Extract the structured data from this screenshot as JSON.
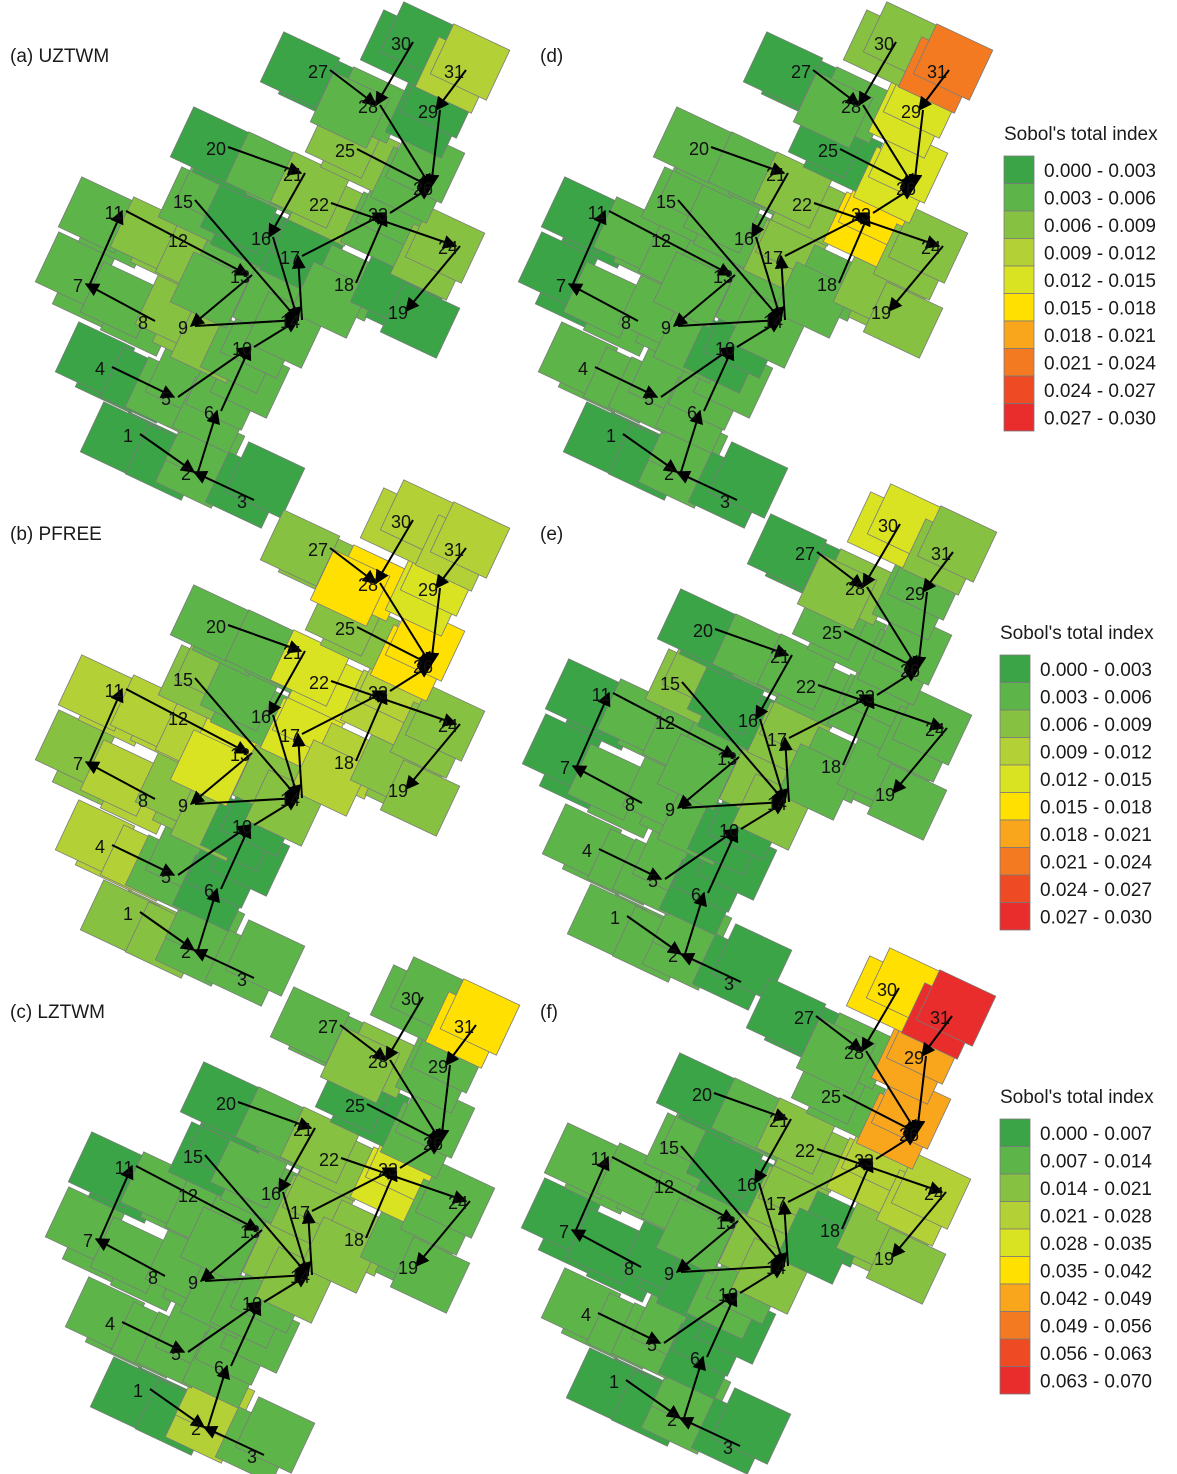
{
  "panels": [
    {
      "title": "(a) UZTWM"
    },
    {
      "title": "(b) PFREE"
    },
    {
      "title": "(c) LZTWM"
    },
    {
      "title": "(d)"
    },
    {
      "title": "(e)"
    },
    {
      "title": "(f)"
    }
  ],
  "subbasins": [
    "1",
    "2",
    "3",
    "4",
    "5",
    "6",
    "7",
    "8",
    "9",
    "10",
    "11",
    "12",
    "13",
    "14",
    "15",
    "16",
    "17",
    "18",
    "19",
    "20",
    "21",
    "22",
    "23",
    "24",
    "25",
    "26",
    "27",
    "28",
    "29",
    "30",
    "31"
  ],
  "flow_routing": [
    [
      "1",
      "2"
    ],
    [
      "3",
      "2"
    ],
    [
      "2",
      "6"
    ],
    [
      "6",
      "10"
    ],
    [
      "4",
      "5"
    ],
    [
      "5",
      "10"
    ],
    [
      "10",
      "14"
    ],
    [
      "7",
      "11"
    ],
    [
      "8",
      "7"
    ],
    [
      "11",
      "13"
    ],
    [
      "13",
      "9"
    ],
    [
      "9",
      "14"
    ],
    [
      "15",
      "14"
    ],
    [
      "20",
      "21"
    ],
    [
      "21",
      "16"
    ],
    [
      "16",
      "14"
    ],
    [
      "14",
      "17"
    ],
    [
      "17",
      "23"
    ],
    [
      "18",
      "23"
    ],
    [
      "22",
      "24"
    ],
    [
      "24",
      "19"
    ],
    [
      "23",
      "26"
    ],
    [
      "25",
      "26"
    ],
    [
      "27",
      "28"
    ],
    [
      "30",
      "28"
    ],
    [
      "28",
      "26"
    ],
    [
      "31",
      "29"
    ],
    [
      "29",
      "26"
    ]
  ],
  "legends": [
    {
      "title": "Sobol's total index",
      "classes": [
        "0.000 - 0.003",
        "0.003 - 0.006",
        "0.006 - 0.009",
        "0.009 - 0.012",
        "0.012 - 0.015",
        "0.015 - 0.018",
        "0.018 - 0.021",
        "0.021 - 0.024",
        "0.024 - 0.027",
        "0.027 - 0.030"
      ]
    },
    {
      "title": "Sobol's total index",
      "classes": [
        "0.000 - 0.003",
        "0.003 - 0.006",
        "0.006 - 0.009",
        "0.009 - 0.012",
        "0.012 - 0.015",
        "0.015 - 0.018",
        "0.018 - 0.021",
        "0.021 - 0.024",
        "0.024 - 0.027",
        "0.027 - 0.030"
      ]
    },
    {
      "title": "Sobol's total index",
      "classes": [
        "0.000 - 0.007",
        "0.007 - 0.014",
        "0.014 - 0.021",
        "0.021 - 0.028",
        "0.028 - 0.035",
        "0.035 - 0.042",
        "0.042 - 0.049",
        "0.049 - 0.056",
        "0.056 - 0.063",
        "0.063 - 0.070"
      ]
    }
  ],
  "class_colors": [
    "#3aa447",
    "#5db54a",
    "#86c141",
    "#b3d136",
    "#d9e321",
    "#ffe000",
    "#f9a61d",
    "#f37a21",
    "#ee4a24",
    "#e92c2c"
  ],
  "subbasin_classes": {
    "a": {
      "1": 0,
      "2": 1,
      "3": 0,
      "4": 0,
      "5": 1,
      "6": 1,
      "7": 1,
      "8": 1,
      "9": 2,
      "10": 1,
      "11": 1,
      "12": 2,
      "13": 1,
      "14": 1,
      "15": 1,
      "16": 0,
      "17": 0,
      "18": 1,
      "19": 0,
      "20": 0,
      "21": 1,
      "22": 2,
      "23": 1,
      "24": 2,
      "25": 2,
      "26": 1,
      "27": 0,
      "28": 1,
      "29": 0,
      "30": 0,
      "31": 3
    },
    "b": {
      "1": 2,
      "2": 1,
      "3": 1,
      "4": 3,
      "5": 1,
      "6": 0,
      "7": 2,
      "8": 3,
      "9": 2,
      "10": 0,
      "11": 3,
      "12": 3,
      "13": 4,
      "14": 2,
      "15": 2,
      "16": 1,
      "17": 4,
      "18": 3,
      "19": 2,
      "20": 1,
      "21": 1,
      "22": 4,
      "23": 3,
      "24": 2,
      "25": 2,
      "26": 5,
      "27": 2,
      "28": 5,
      "29": 4,
      "30": 3,
      "31": 3
    },
    "c": {
      "1": 0,
      "2": 3,
      "3": 1,
      "4": 1,
      "5": 1,
      "6": 1,
      "7": 1,
      "8": 1,
      "9": 1,
      "10": 1,
      "11": 0,
      "12": 1,
      "13": 1,
      "14": 2,
      "15": 0,
      "16": 1,
      "17": 2,
      "18": 2,
      "19": 1,
      "20": 0,
      "21": 1,
      "22": 2,
      "23": 4,
      "24": 1,
      "25": 0,
      "26": 1,
      "27": 1,
      "28": 2,
      "29": 1,
      "30": 1,
      "31": 5
    },
    "d": {
      "1": 0,
      "2": 1,
      "3": 0,
      "4": 1,
      "5": 1,
      "6": 1,
      "7": 0,
      "8": 1,
      "9": 1,
      "10": 0,
      "11": 0,
      "12": 1,
      "13": 1,
      "14": 1,
      "15": 1,
      "16": 1,
      "17": 2,
      "18": 1,
      "19": 2,
      "20": 1,
      "21": 1,
      "22": 2,
      "23": 5,
      "24": 2,
      "25": 0,
      "26": 4,
      "27": 0,
      "28": 1,
      "29": 4,
      "30": 2,
      "31": 7
    },
    "e": {
      "1": 1,
      "2": 1,
      "3": 0,
      "4": 1,
      "5": 1,
      "6": 0,
      "7": 0,
      "8": 1,
      "9": 1,
      "10": 0,
      "11": 0,
      "12": 1,
      "13": 1,
      "14": 2,
      "15": 2,
      "16": 0,
      "17": 2,
      "18": 1,
      "19": 1,
      "20": 0,
      "21": 1,
      "22": 1,
      "23": 1,
      "24": 1,
      "25": 1,
      "26": 1,
      "27": 0,
      "28": 2,
      "29": 1,
      "30": 4,
      "31": 2
    },
    "f": {
      "1": 0,
      "2": 1,
      "3": 0,
      "4": 1,
      "5": 1,
      "6": 0,
      "7": 0,
      "8": 0,
      "9": 0,
      "10": 1,
      "11": 1,
      "12": 1,
      "13": 1,
      "14": 2,
      "15": 1,
      "16": 0,
      "17": 2,
      "18": 0,
      "19": 2,
      "20": 0,
      "21": 1,
      "22": 2,
      "23": 3,
      "24": 3,
      "25": 1,
      "26": 6,
      "27": 0,
      "28": 1,
      "29": 6,
      "30": 5,
      "31": 9
    }
  }
}
